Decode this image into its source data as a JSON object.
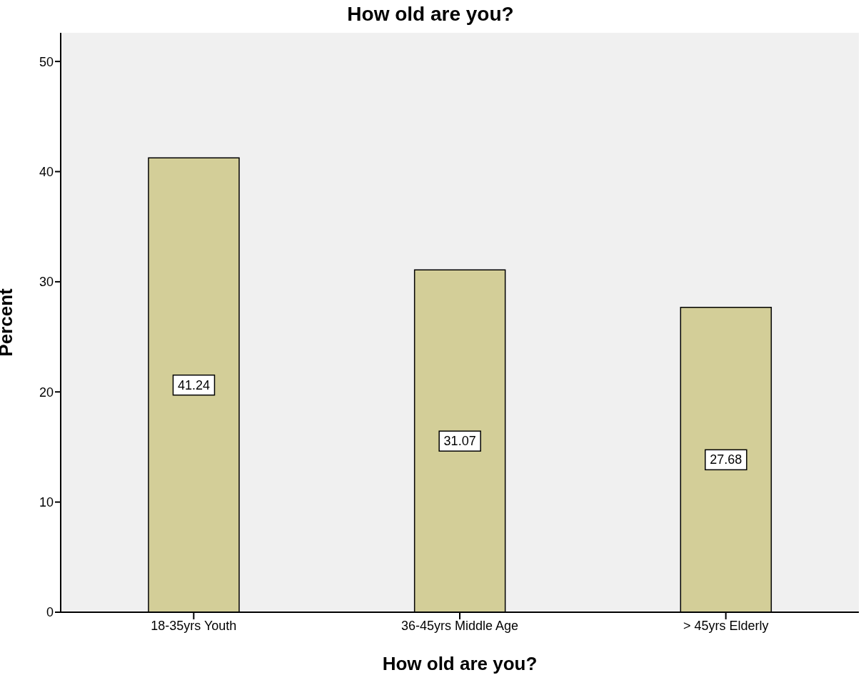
{
  "chart_data": {
    "type": "bar",
    "title": "How old are you?",
    "xlabel": "How old are you?",
    "ylabel": "Percent",
    "categories": [
      "18-35yrs Youth",
      "36-45yrs Middle Age",
      "> 45yrs Elderly"
    ],
    "values": [
      41.24,
      31.07,
      27.68
    ],
    "color": "#d3ce98",
    "ylim": [
      0,
      52.6
    ],
    "yticks": [
      0,
      10,
      20,
      30,
      40,
      50
    ],
    "grid": false,
    "data_labels": true
  }
}
